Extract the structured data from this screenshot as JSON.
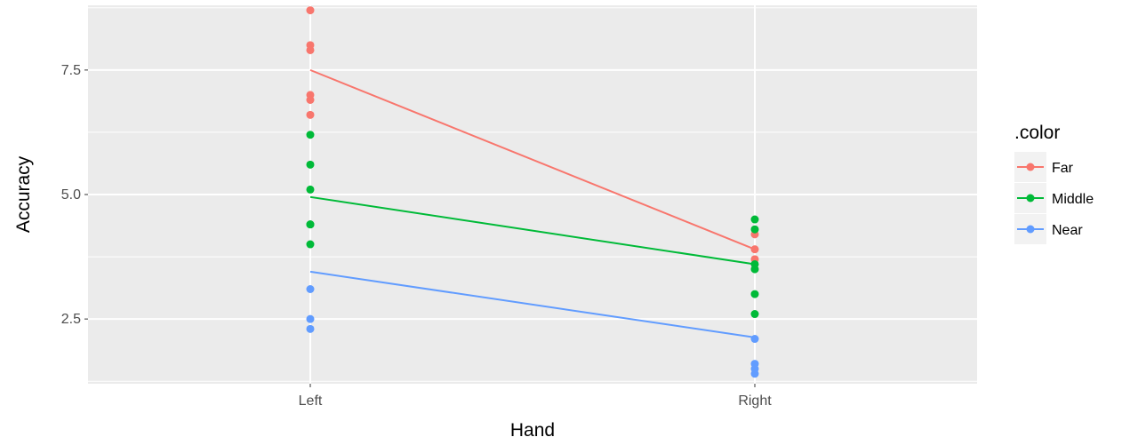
{
  "chart_data": {
    "type": "line",
    "xlabel": "Hand",
    "ylabel": "Accuracy",
    "categories": [
      "Left",
      "Right"
    ],
    "y_ticks": [
      2.5,
      5.0,
      7.5
    ],
    "y_tick_labels": [
      "2.5",
      "5.0",
      "7.5"
    ],
    "ylim": [
      1.2,
      8.8
    ],
    "grid": true,
    "legend": {
      "title": ".color",
      "position": "right",
      "entries": [
        "Far",
        "Middle",
        "Near"
      ]
    },
    "series": [
      {
        "name": "Far",
        "color": "#F8766D",
        "line_values": [
          7.5,
          3.9
        ],
        "points": [
          {
            "x": "Left",
            "y": 8.7
          },
          {
            "x": "Left",
            "y": 8.0
          },
          {
            "x": "Left",
            "y": 7.9
          },
          {
            "x": "Left",
            "y": 7.0
          },
          {
            "x": "Left",
            "y": 6.9
          },
          {
            "x": "Left",
            "y": 6.6
          },
          {
            "x": "Right",
            "y": 4.2
          },
          {
            "x": "Right",
            "y": 3.9
          },
          {
            "x": "Right",
            "y": 3.7
          }
        ]
      },
      {
        "name": "Middle",
        "color": "#00BA38",
        "line_values": [
          4.95,
          3.6
        ],
        "points": [
          {
            "x": "Left",
            "y": 6.2
          },
          {
            "x": "Left",
            "y": 5.6
          },
          {
            "x": "Left",
            "y": 5.1
          },
          {
            "x": "Left",
            "y": 4.4
          },
          {
            "x": "Left",
            "y": 4.4
          },
          {
            "x": "Left",
            "y": 4.0
          },
          {
            "x": "Right",
            "y": 4.5
          },
          {
            "x": "Right",
            "y": 4.3
          },
          {
            "x": "Right",
            "y": 3.6
          },
          {
            "x": "Right",
            "y": 3.5
          },
          {
            "x": "Right",
            "y": 3.0
          },
          {
            "x": "Right",
            "y": 2.6
          }
        ]
      },
      {
        "name": "Near",
        "color": "#619CFF",
        "line_values": [
          3.45,
          2.13
        ],
        "points": [
          {
            "x": "Left",
            "y": 3.1
          },
          {
            "x": "Left",
            "y": 2.5
          },
          {
            "x": "Left",
            "y": 2.3
          },
          {
            "x": "Right",
            "y": 2.1
          },
          {
            "x": "Right",
            "y": 1.6
          },
          {
            "x": "Right",
            "y": 1.5
          },
          {
            "x": "Right",
            "y": 1.4
          }
        ]
      }
    ]
  }
}
